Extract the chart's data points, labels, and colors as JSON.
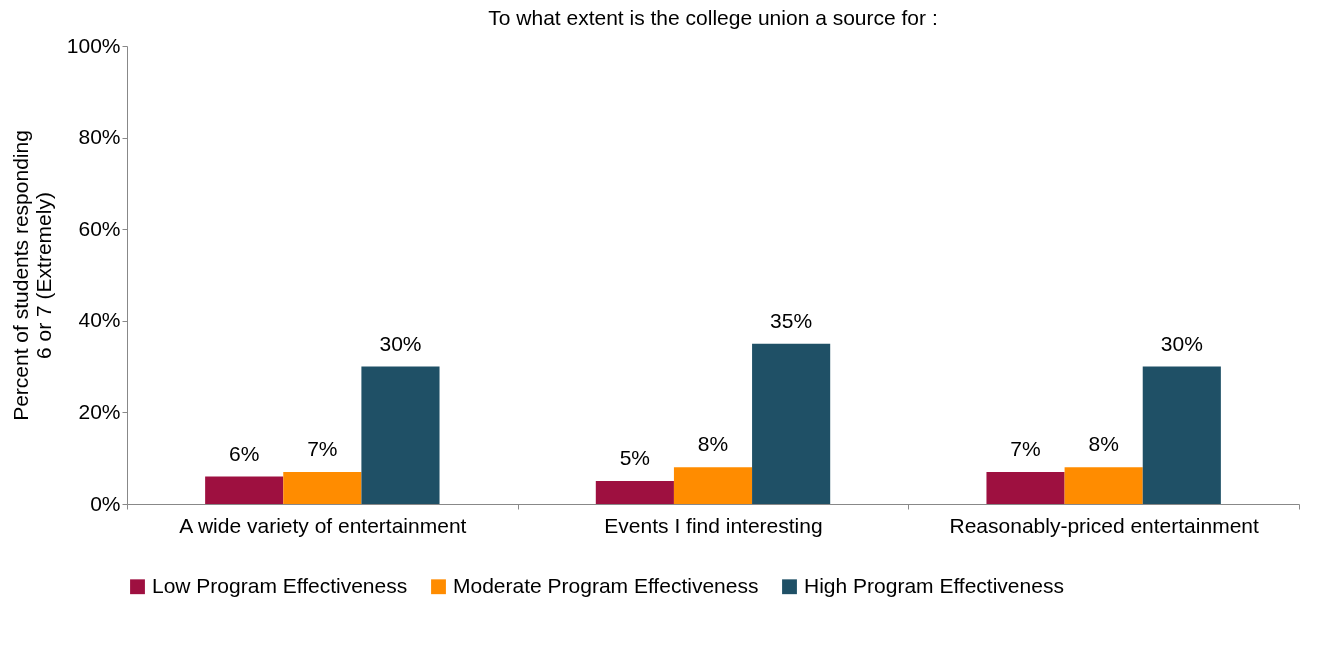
{
  "chart_data": {
    "type": "bar",
    "title": "To what extent is the college union a source for :",
    "ylabel": "Percent of students responding\n6 or 7 (Extremely)",
    "categories": [
      "A wide variety of entertainment",
      "Events I find interesting",
      "Reasonably-priced entertainment"
    ],
    "series": [
      {
        "name": "Low Program Effectiveness",
        "color": "#9e1040",
        "values": [
          6,
          5,
          7
        ],
        "value_labels": [
          "6%",
          "5%",
          "7%"
        ]
      },
      {
        "name": "Moderate Program Effectiveness",
        "color": "#ff8c00",
        "values": [
          7,
          8,
          8
        ],
        "value_labels": [
          "7%",
          "8%",
          "8%"
        ]
      },
      {
        "name": "High Program Effectiveness",
        "color": "#1f5066",
        "values": [
          30,
          35,
          30
        ],
        "value_labels": [
          "30%",
          "35%",
          "30%"
        ]
      }
    ],
    "ylim": [
      0,
      100
    ],
    "yticks": [
      {
        "value": 0,
        "label": "0%"
      },
      {
        "value": 20,
        "label": "20%"
      },
      {
        "value": 40,
        "label": "40%"
      },
      {
        "value": 60,
        "label": "60%"
      },
      {
        "value": 80,
        "label": "80%"
      },
      {
        "value": 100,
        "label": "100%"
      }
    ],
    "grid": false,
    "legend": "bottom"
  }
}
